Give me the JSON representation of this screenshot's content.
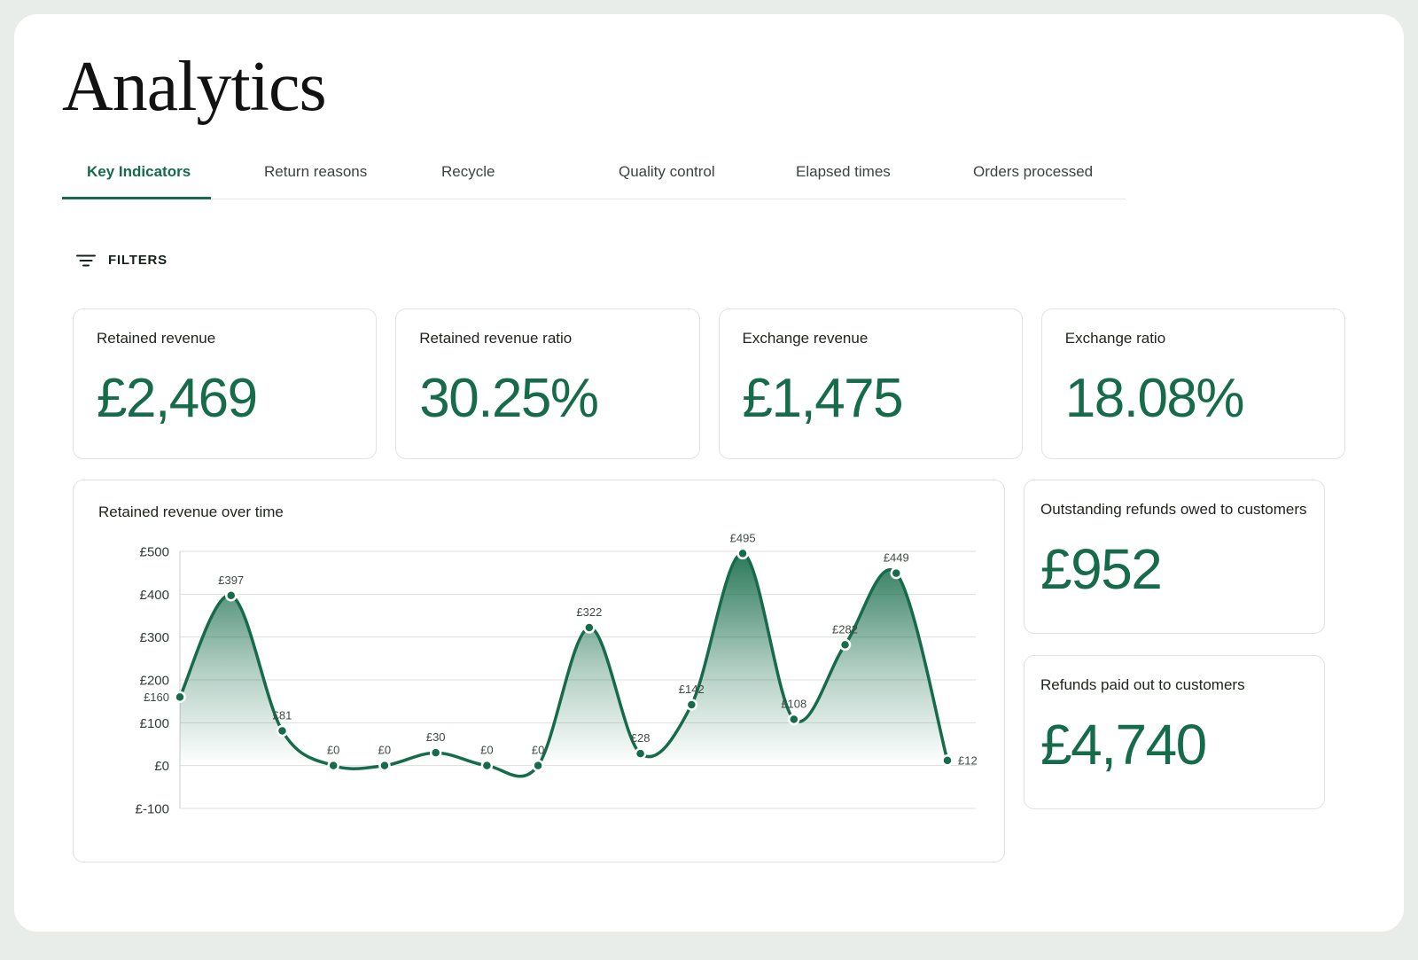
{
  "page": {
    "title": "Analytics"
  },
  "tabs": [
    {
      "label": "Key Indicators",
      "active": true
    },
    {
      "label": "Return reasons",
      "active": false
    },
    {
      "label": "Recycle",
      "active": false
    },
    {
      "label": "Quality control",
      "active": false
    },
    {
      "label": "Elapsed times",
      "active": false
    },
    {
      "label": "Orders processed",
      "active": false
    }
  ],
  "filters": {
    "label": "FILTERS"
  },
  "stat_cards": [
    {
      "label": "Retained revenue",
      "value": "£2,469"
    },
    {
      "label": "Retained revenue ratio",
      "value": "30.25%"
    },
    {
      "label": "Exchange revenue",
      "value": "£1,475"
    },
    {
      "label": "Exchange ratio",
      "value": "18.08%"
    }
  ],
  "side_cards": [
    {
      "label": "Outstanding refunds owed to customers",
      "value": "£952"
    },
    {
      "label": "Refunds paid out to customers",
      "value": "£4,740"
    }
  ],
  "chart_data": {
    "type": "area",
    "title": "Retained revenue over time",
    "values": [
      160,
      397,
      81,
      0,
      0,
      30,
      0,
      0,
      322,
      28,
      142,
      495,
      108,
      282,
      449,
      12
    ],
    "point_labels": [
      "£160",
      "£397",
      "£81",
      "£0",
      "£0",
      "£30",
      "£0",
      "£0",
      "£322",
      "£28",
      "£142",
      "£495",
      "£108",
      "£282",
      "£449",
      "£12"
    ],
    "y_ticks": [
      500,
      400,
      300,
      200,
      100,
      0,
      -100
    ],
    "y_tick_labels": [
      "£500",
      "£400",
      "£300",
      "£200",
      "£100",
      "£0",
      "£-100"
    ],
    "ylim": [
      -100,
      500
    ],
    "xlabel": "",
    "ylabel": "",
    "grid": true,
    "legend": false,
    "line_color": "#156b4a"
  },
  "colors": {
    "accent": "#156b4a",
    "text_dark": "#20261f",
    "grid_line": "#dcdfdc",
    "card_border": "#e0e4e1",
    "page_background": "#ffffff",
    "outer_background": "#e9ede9"
  }
}
